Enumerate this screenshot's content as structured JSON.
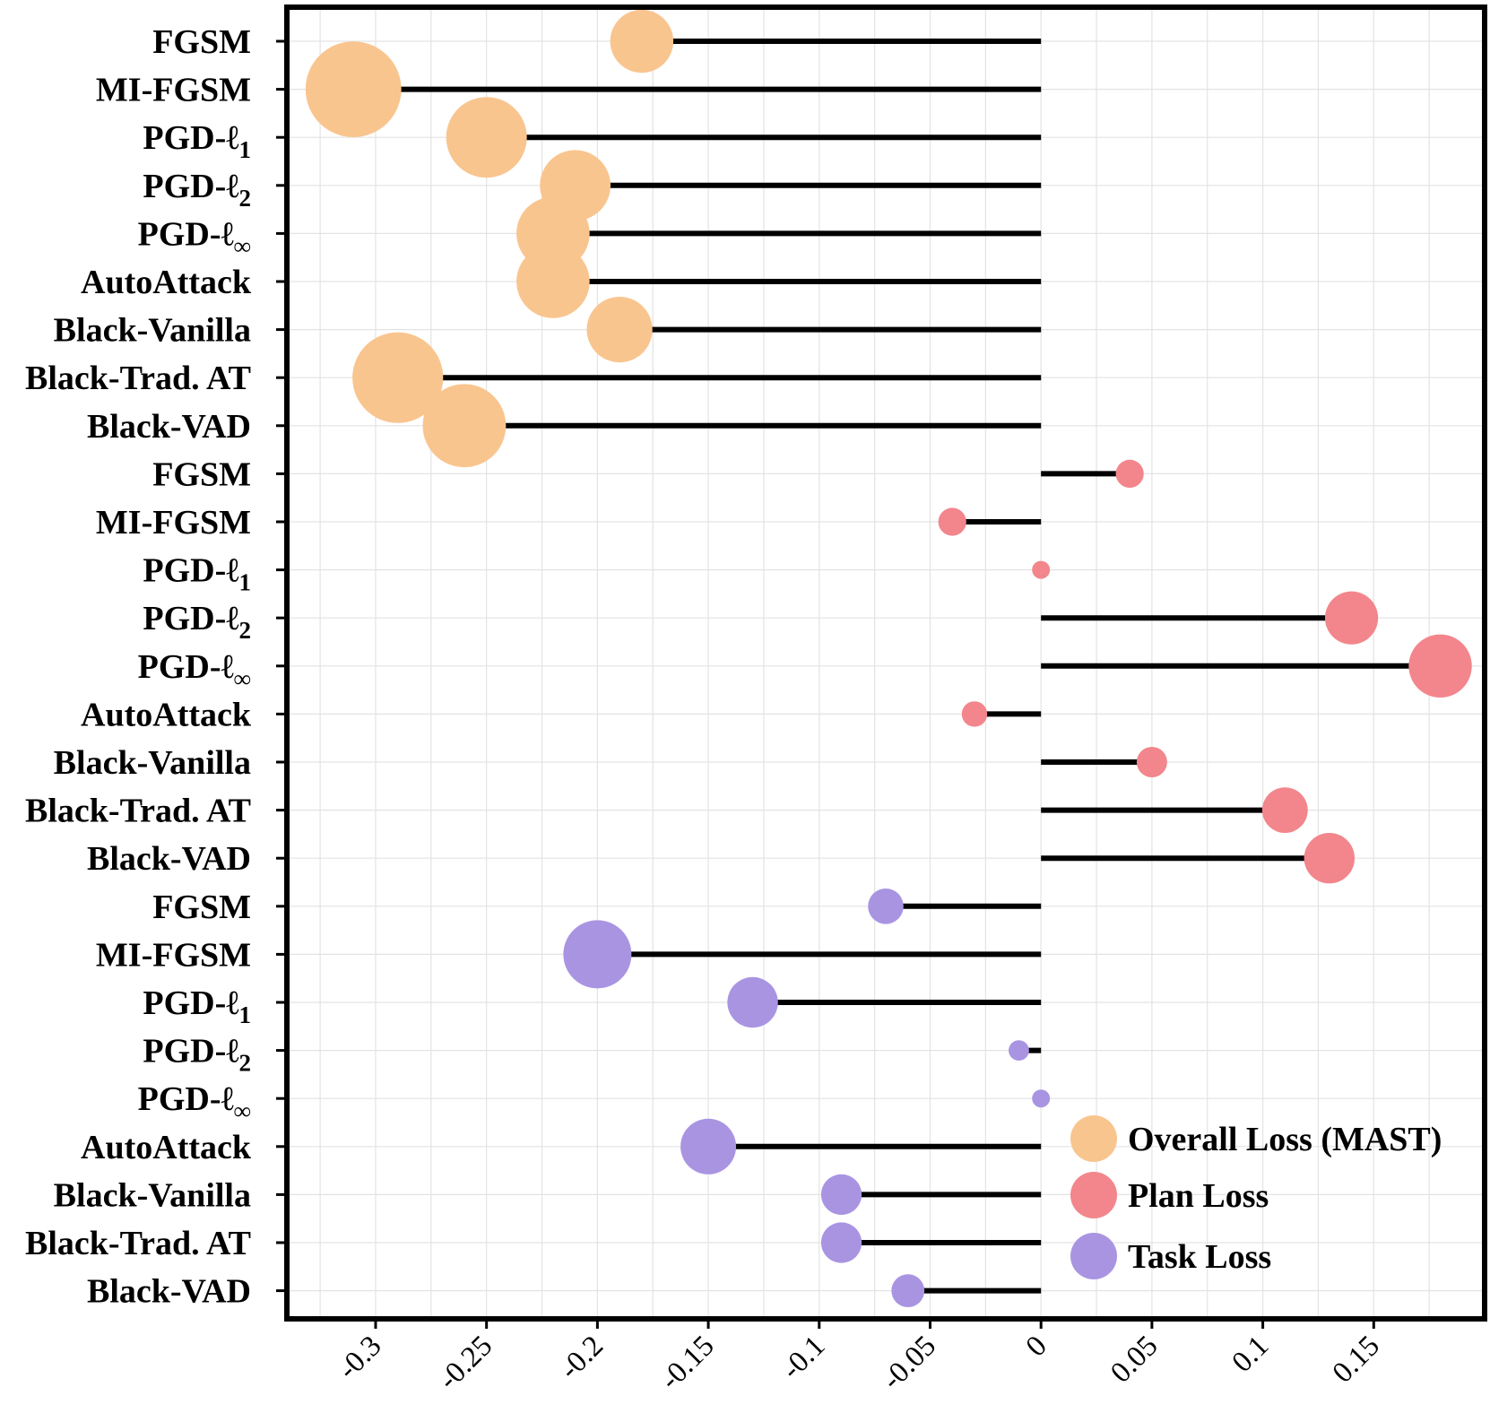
{
  "chart_data": {
    "type": "lollipop",
    "title": "",
    "xlabel": "",
    "ylabel": "",
    "xlim": [
      -0.34,
      0.2
    ],
    "x_ticks": [
      "-0.3",
      "-0.25",
      "-0.2",
      "-0.15",
      "-0.1",
      "-0.05",
      "0",
      "0.05",
      "0.1",
      "0.15"
    ],
    "x_tick_values": [
      -0.3,
      -0.25,
      -0.2,
      -0.15,
      -0.1,
      -0.05,
      0,
      0.05,
      0.1,
      0.15
    ],
    "grid": true,
    "legend_position": "bottom-right",
    "series": [
      {
        "name": "Overall Loss (MAST)",
        "color": "#f9c58f",
        "points": [
          {
            "label": "FGSM",
            "base": "FGSM",
            "sub": "",
            "value": -0.18
          },
          {
            "label": "MI-FGSM",
            "base": "MI-FGSM",
            "sub": "",
            "value": -0.31
          },
          {
            "label": "PGD-ℓ1",
            "base": "PGD-ℓ",
            "sub": "1",
            "value": -0.25
          },
          {
            "label": "PGD-ℓ2",
            "base": "PGD-ℓ",
            "sub": "2",
            "value": -0.21
          },
          {
            "label": "PGD-ℓ∞",
            "base": "PGD-ℓ",
            "sub": "∞",
            "value": -0.22
          },
          {
            "label": "AutoAttack",
            "base": "AutoAttack",
            "sub": "",
            "value": -0.22
          },
          {
            "label": "Black-Vanilla",
            "base": "Black-Vanilla",
            "sub": "",
            "value": -0.19
          },
          {
            "label": "Black-Trad. AT",
            "base": "Black-Trad. AT",
            "sub": "",
            "value": -0.29
          },
          {
            "label": "Black-VAD",
            "base": "Black-VAD",
            "sub": "",
            "value": -0.26
          }
        ]
      },
      {
        "name": "Plan Loss",
        "color": "#f2868c",
        "points": [
          {
            "label": "FGSM",
            "base": "FGSM",
            "sub": "",
            "value": 0.04
          },
          {
            "label": "MI-FGSM",
            "base": "MI-FGSM",
            "sub": "",
            "value": -0.04
          },
          {
            "label": "PGD-ℓ1",
            "base": "PGD-ℓ",
            "sub": "1",
            "value": 0.0
          },
          {
            "label": "PGD-ℓ2",
            "base": "PGD-ℓ",
            "sub": "2",
            "value": 0.14
          },
          {
            "label": "PGD-ℓ∞",
            "base": "PGD-ℓ",
            "sub": "∞",
            "value": 0.18
          },
          {
            "label": "AutoAttack",
            "base": "AutoAttack",
            "sub": "",
            "value": -0.03
          },
          {
            "label": "Black-Vanilla",
            "base": "Black-Vanilla",
            "sub": "",
            "value": 0.05
          },
          {
            "label": "Black-Trad. AT",
            "base": "Black-Trad. AT",
            "sub": "",
            "value": 0.11
          },
          {
            "label": "Black-VAD",
            "base": "Black-VAD",
            "sub": "",
            "value": 0.13
          }
        ]
      },
      {
        "name": "Task Loss",
        "color": "#a994e2",
        "points": [
          {
            "label": "FGSM",
            "base": "FGSM",
            "sub": "",
            "value": -0.07
          },
          {
            "label": "MI-FGSM",
            "base": "MI-FGSM",
            "sub": "",
            "value": -0.2
          },
          {
            "label": "PGD-ℓ1",
            "base": "PGD-ℓ",
            "sub": "1",
            "value": -0.13
          },
          {
            "label": "PGD-ℓ2",
            "base": "PGD-ℓ",
            "sub": "2",
            "value": -0.01
          },
          {
            "label": "PGD-ℓ∞",
            "base": "PGD-ℓ",
            "sub": "∞",
            "value": 0.0
          },
          {
            "label": "AutoAttack",
            "base": "AutoAttack",
            "sub": "",
            "value": -0.15
          },
          {
            "label": "Black-Vanilla",
            "base": "Black-Vanilla",
            "sub": "",
            "value": -0.09
          },
          {
            "label": "Black-Trad. AT",
            "base": "Black-Trad. AT",
            "sub": "",
            "value": -0.09
          },
          {
            "label": "Black-VAD",
            "base": "Black-VAD",
            "sub": "",
            "value": -0.06
          }
        ]
      }
    ]
  }
}
